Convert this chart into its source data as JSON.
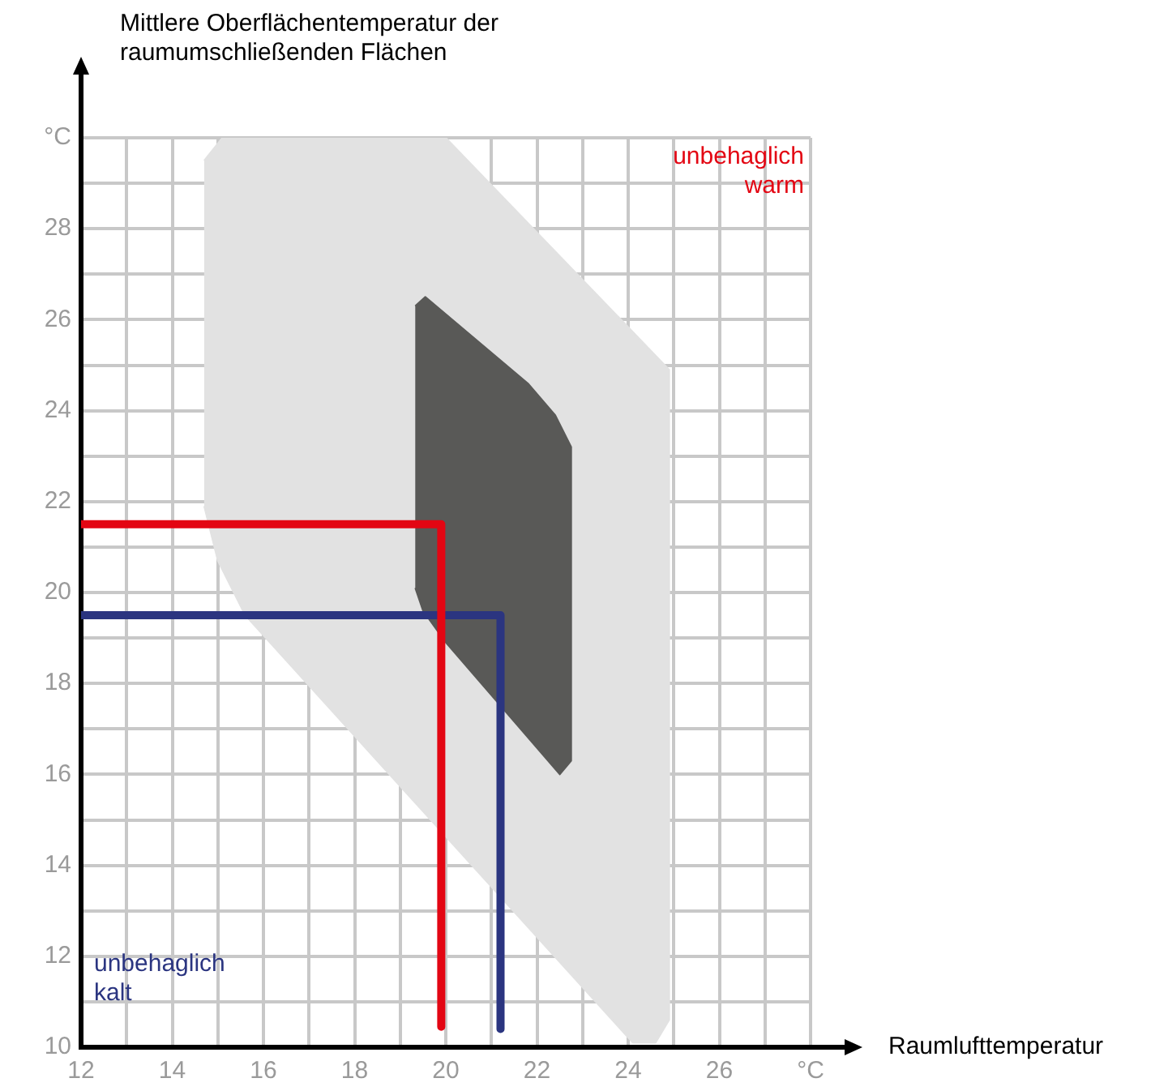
{
  "chart_data": {
    "type": "line",
    "xlabel": "Raumlufttemperatur",
    "ylabel": "Mittlere Oberflächentemperatur der raumumschließenden Flächen",
    "xlim": [
      12,
      28
    ],
    "ylim": [
      10,
      30
    ],
    "xticks": [
      12,
      {
        "value": 13,
        "label": null
      },
      14,
      {
        "value": 15,
        "label": null
      },
      16,
      {
        "value": 17,
        "label": null
      },
      18,
      {
        "value": 19,
        "label": null
      },
      20,
      {
        "value": 21,
        "label": null
      },
      22,
      {
        "value": 23,
        "label": null
      },
      24,
      {
        "value": 25,
        "label": null
      },
      26,
      {
        "value": 27,
        "label": null
      },
      {
        "value": 28,
        "label": "°C"
      }
    ],
    "yticks": [
      10,
      {
        "value": 11,
        "label": null
      },
      12,
      {
        "value": 13,
        "label": null
      },
      14,
      {
        "value": 15,
        "label": null
      },
      16,
      {
        "value": 17,
        "label": null
      },
      18,
      {
        "value": 19,
        "label": null
      },
      20,
      {
        "value": 21,
        "label": null
      },
      22,
      {
        "value": 23,
        "label": null
      },
      24,
      {
        "value": 25,
        "label": null
      },
      26,
      {
        "value": 27,
        "label": null
      },
      28,
      {
        "value": 29,
        "label": null
      },
      {
        "value": 30,
        "label": "°C"
      }
    ],
    "grid": true,
    "legend": false,
    "marker": "none",
    "series": [
      {
        "type": "area",
        "color": "#e2e2e2",
        "x": [
          14.7,
          15.1,
          20,
          24.9,
          24.9,
          24.6,
          24.1,
          15.6,
          15,
          14.7
        ],
        "values": [
          29.5,
          30,
          30,
          24.9,
          10.6,
          10.1,
          10.1,
          19.5,
          20.7,
          21.9
        ]
      },
      {
        "type": "area",
        "color": "#595957",
        "x": [
          19.33,
          19.55,
          21.8,
          22.4,
          22.75,
          22.75,
          22.5,
          20,
          19.5,
          19.33
        ],
        "values": [
          26.3,
          26.5,
          24.6,
          23.9,
          23.2,
          16.3,
          16,
          18.9,
          19.6,
          20.1
        ]
      },
      {
        "type": "line",
        "color": "#e30613",
        "x": [
          12,
          19.9,
          19.9
        ],
        "values": [
          21.5,
          21.5,
          10.45
        ]
      },
      {
        "type": "line",
        "color": "#2b3580",
        "x": [
          12,
          21.2,
          21.2
        ],
        "values": [
          19.5,
          19.5,
          10.4
        ]
      }
    ],
    "annotations": [
      "unbehaglich warm",
      "unbehaglich kalt"
    ]
  }
}
